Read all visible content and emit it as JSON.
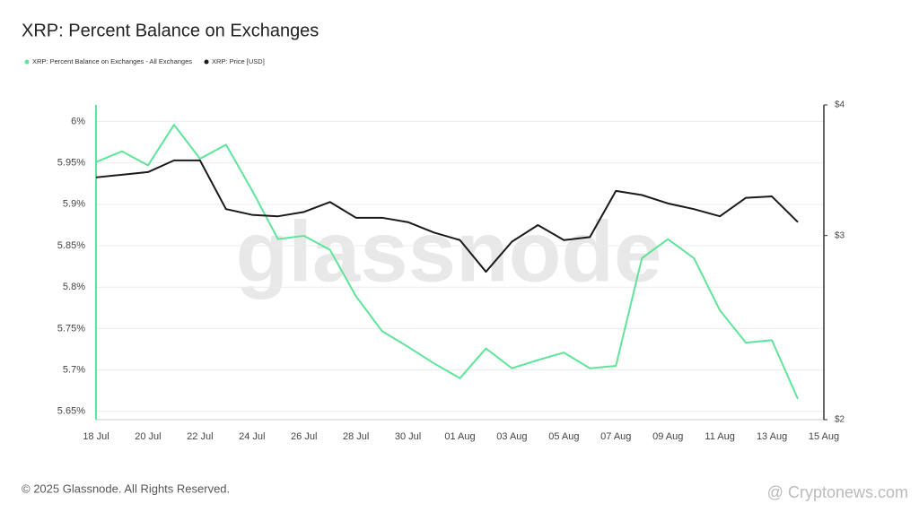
{
  "chart_data": {
    "type": "line",
    "title": "XRP: Percent Balance on Exchanges",
    "watermark": "glassnode",
    "copyright": "© 2025 Glassnode. All Rights Reserved.",
    "source_watermark": "@ Cryptonews.com",
    "x": [
      "18 Jul",
      "19 Jul",
      "20 Jul",
      "21 Jul",
      "22 Jul",
      "23 Jul",
      "24 Jul",
      "25 Jul",
      "26 Jul",
      "27 Jul",
      "28 Jul",
      "29 Jul",
      "30 Jul",
      "31 Jul",
      "01 Aug",
      "02 Aug",
      "03 Aug",
      "04 Aug",
      "05 Aug",
      "06 Aug",
      "07 Aug",
      "08 Aug",
      "09 Aug",
      "10 Aug",
      "11 Aug",
      "12 Aug",
      "13 Aug",
      "14 Aug"
    ],
    "xlim": [
      "18 Jul",
      "15 Aug"
    ],
    "xticks": [
      "18 Jul",
      "20 Jul",
      "22 Jul",
      "24 Jul",
      "26 Jul",
      "28 Jul",
      "30 Jul",
      "01 Aug",
      "03 Aug",
      "05 Aug",
      "07 Aug",
      "09 Aug",
      "11 Aug",
      "13 Aug",
      "15 Aug"
    ],
    "series": [
      {
        "name": "XRP: Percent Balance on Exchanges - All Exchanges",
        "color": "#5ee59a",
        "values": [
          5.951,
          5.964,
          5.947,
          5.996,
          5.955,
          5.972,
          5.917,
          5.858,
          5.862,
          5.845,
          5.789,
          5.747,
          5.728,
          5.708,
          5.69,
          5.726,
          5.702,
          5.712,
          5.721,
          5.702,
          5.705,
          5.835,
          5.858,
          5.835,
          5.772,
          5.733,
          5.736,
          5.665
        ]
      },
      {
        "name": "XRP: Price [USD]",
        "color": "#1a1a1a",
        "axis": "y2",
        "values": [
          3.41,
          3.43,
          3.45,
          3.54,
          3.54,
          3.18,
          3.14,
          3.13,
          3.16,
          3.23,
          3.12,
          3.12,
          3.09,
          3.02,
          2.97,
          2.77,
          2.96,
          3.07,
          2.97,
          2.99,
          3.31,
          3.28,
          3.22,
          3.18,
          3.13,
          3.26,
          3.27,
          3.09
        ]
      }
    ],
    "ylim": [
      5.64,
      6.02
    ],
    "yticks": [
      {
        "value": 5.65,
        "label": "5.65%"
      },
      {
        "value": 5.7,
        "label": "5.7%"
      },
      {
        "value": 5.75,
        "label": "5.75%"
      },
      {
        "value": 5.8,
        "label": "5.8%"
      },
      {
        "value": 5.85,
        "label": "5.85%"
      },
      {
        "value": 5.9,
        "label": "5.9%"
      },
      {
        "value": 5.95,
        "label": "5.95%"
      },
      {
        "value": 6,
        "label": "6%"
      }
    ],
    "y2lim": [
      2,
      4
    ],
    "y2ticks": [
      {
        "value": 2,
        "label": "$2"
      },
      {
        "value": 3,
        "label": "$3"
      },
      {
        "value": 4,
        "label": "$4"
      }
    ],
    "y2scale": "log",
    "grid": true
  }
}
